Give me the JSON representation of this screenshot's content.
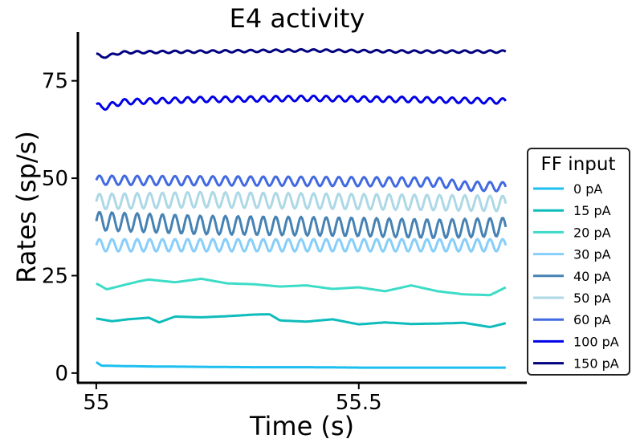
{
  "chart_data": {
    "type": "line",
    "title": "E4 activity",
    "xlabel": "Time (s)",
    "ylabel": "Rates (sp/s)",
    "xlim": [
      54.965,
      55.82
    ],
    "ylim": [
      -2.5,
      87.5
    ],
    "xticks": [
      55,
      55.5
    ],
    "xtick_labels": [
      "55",
      "55.5"
    ],
    "yticks": [
      0,
      25,
      50,
      75
    ],
    "ytick_labels": [
      "0",
      "25",
      "50",
      "75"
    ],
    "grid": false,
    "legend": {
      "title": "FF input",
      "position": "right"
    },
    "series": [
      {
        "name": "0 pA",
        "color": "#1cbfef",
        "x": [
          55.0,
          55.01,
          55.05,
          55.1,
          55.2,
          55.3,
          55.4,
          55.5,
          55.6,
          55.7,
          55.78
        ],
        "y": [
          2.8,
          1.9,
          1.8,
          1.7,
          1.6,
          1.5,
          1.5,
          1.4,
          1.4,
          1.4,
          1.4
        ]
      },
      {
        "name": "15 pA",
        "color": "#0fbcbc",
        "x": [
          55.0,
          55.03,
          55.06,
          55.1,
          55.12,
          55.15,
          55.2,
          55.25,
          55.3,
          55.33,
          55.35,
          55.4,
          55.45,
          55.5,
          55.55,
          55.6,
          55.65,
          55.7,
          55.75,
          55.78
        ],
        "y": [
          14.0,
          13.3,
          13.8,
          14.2,
          13.0,
          14.5,
          14.3,
          14.6,
          15.0,
          15.1,
          13.5,
          13.2,
          13.8,
          12.5,
          13.0,
          12.6,
          12.7,
          12.9,
          11.8,
          12.8
        ]
      },
      {
        "name": "20 pA",
        "color": "#3ddcc6",
        "x": [
          55.0,
          55.02,
          55.05,
          55.08,
          55.1,
          55.15,
          55.2,
          55.25,
          55.3,
          55.35,
          55.4,
          55.45,
          55.5,
          55.55,
          55.6,
          55.65,
          55.7,
          55.75,
          55.78
        ],
        "y": [
          23.0,
          21.5,
          22.5,
          23.5,
          24.0,
          23.3,
          24.2,
          23.0,
          22.8,
          22.2,
          22.5,
          21.6,
          22.0,
          21.0,
          22.5,
          21.0,
          20.2,
          20.0,
          22.0
        ]
      },
      {
        "name": "30 pA",
        "color": "#87cefa",
        "x": [
          55.0,
          55.78
        ],
        "y": [
          32.8,
          32.8
        ],
        "amp": 1.6,
        "period": 0.024
      },
      {
        "name": "40 pA",
        "color": "#4682b4",
        "x": [
          55.0,
          55.2,
          55.5,
          55.65,
          55.78
        ],
        "y": [
          39.0,
          38.0,
          37.5,
          37.0,
          37.5
        ],
        "amp": 2.4,
        "period": 0.024
      },
      {
        "name": "50 pA",
        "color": "#add8e6",
        "x": [
          55.0,
          55.2,
          55.5,
          55.78
        ],
        "y": [
          44.0,
          44.5,
          44.0,
          43.5
        ],
        "amp": 2.0,
        "period": 0.024
      },
      {
        "name": "60 pA",
        "color": "#4169e1",
        "x": [
          55.0,
          55.4,
          55.65,
          55.7,
          55.78
        ],
        "y": [
          49.5,
          49.2,
          49.0,
          48.0,
          47.8
        ],
        "amp": 1.2,
        "period": 0.024
      },
      {
        "name": "100 pA",
        "color": "#0000e6",
        "x": [
          55.0,
          55.01,
          55.05,
          55.2,
          55.4,
          55.6,
          55.78
        ],
        "y": [
          69.0,
          68.0,
          69.6,
          70.2,
          70.5,
          70.2,
          69.8
        ],
        "amp": 0.7,
        "period": 0.024
      },
      {
        "name": "150 pA",
        "color": "#000080",
        "x": [
          55.0,
          55.01,
          55.05,
          55.2,
          55.4,
          55.6,
          55.78
        ],
        "y": [
          82.0,
          81.0,
          82.3,
          82.5,
          82.8,
          82.5,
          82.5
        ],
        "amp": 0.3,
        "period": 0.024
      }
    ]
  }
}
